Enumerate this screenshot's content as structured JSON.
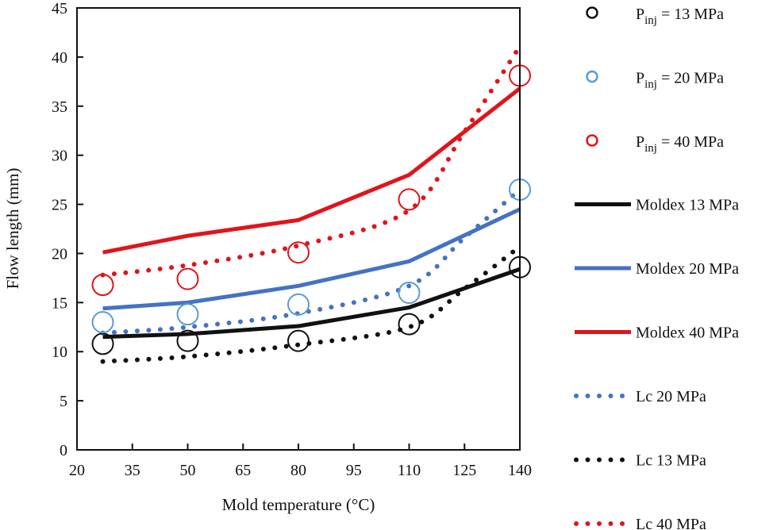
{
  "chart_data": {
    "type": "line",
    "title": "",
    "xlabel": "Mold temperature (°C)",
    "ylabel": "Flow length (mm)",
    "xlim": [
      20,
      140
    ],
    "ylim": [
      0,
      45
    ],
    "xticks": [
      20,
      35,
      50,
      65,
      80,
      95,
      110,
      125,
      140
    ],
    "yticks": [
      0,
      5,
      10,
      15,
      20,
      25,
      30,
      35,
      40,
      45
    ],
    "grid": false,
    "legend_placement": "right",
    "series": [
      {
        "name": "Pinj = 13 MPa",
        "style": "marker-circle",
        "color": "#111111",
        "x": [
          27,
          50,
          80,
          110,
          140
        ],
        "y": [
          10.8,
          11.1,
          11.1,
          12.8,
          18.6
        ]
      },
      {
        "name": "Pinj = 20 MPa",
        "style": "marker-circle",
        "color": "#5b9bd5",
        "x": [
          27,
          50,
          80,
          110,
          140
        ],
        "y": [
          13.0,
          13.8,
          14.8,
          16.0,
          26.5
        ]
      },
      {
        "name": "Pinj = 40 MPa",
        "style": "marker-circle",
        "color": "#e0141b",
        "x": [
          27,
          50,
          80,
          110,
          140
        ],
        "y": [
          16.8,
          17.4,
          20.1,
          25.5,
          38.1
        ]
      },
      {
        "name": "Moldex 13 MPa",
        "style": "solid",
        "color": "#111111",
        "x": [
          27,
          50,
          80,
          110,
          140
        ],
        "y": [
          11.5,
          11.8,
          12.6,
          14.5,
          18.4
        ]
      },
      {
        "name": "Moldex 20 MPa",
        "style": "solid",
        "color": "#4472c4",
        "x": [
          27,
          50,
          80,
          110,
          140
        ],
        "y": [
          14.4,
          15.0,
          16.7,
          19.2,
          24.5
        ]
      },
      {
        "name": "Moldex 40 MPa",
        "style": "solid",
        "color": "#e0141b",
        "x": [
          27,
          50,
          80,
          110,
          140
        ],
        "y": [
          20.1,
          21.8,
          23.4,
          28.0,
          36.8
        ]
      },
      {
        "name": "Lc 20 MPa",
        "style": "dotted",
        "color": "#4472c4",
        "x": [
          27,
          50,
          80,
          110,
          125,
          140
        ],
        "y": [
          11.9,
          12.5,
          13.9,
          16.7,
          21.6,
          26.5
        ]
      },
      {
        "name": "Lc 13 MPa",
        "style": "dotted",
        "color": "#111111",
        "x": [
          27,
          50,
          80,
          110,
          125,
          140
        ],
        "y": [
          9.0,
          9.5,
          10.7,
          12.5,
          16.4,
          20.7
        ]
      },
      {
        "name": "Lc 40 MPa",
        "style": "dotted",
        "color": "#e0141b",
        "x": [
          27,
          50,
          80,
          110,
          125,
          140
        ],
        "y": [
          17.8,
          18.8,
          20.8,
          24.4,
          32.4,
          41.1
        ]
      }
    ]
  }
}
